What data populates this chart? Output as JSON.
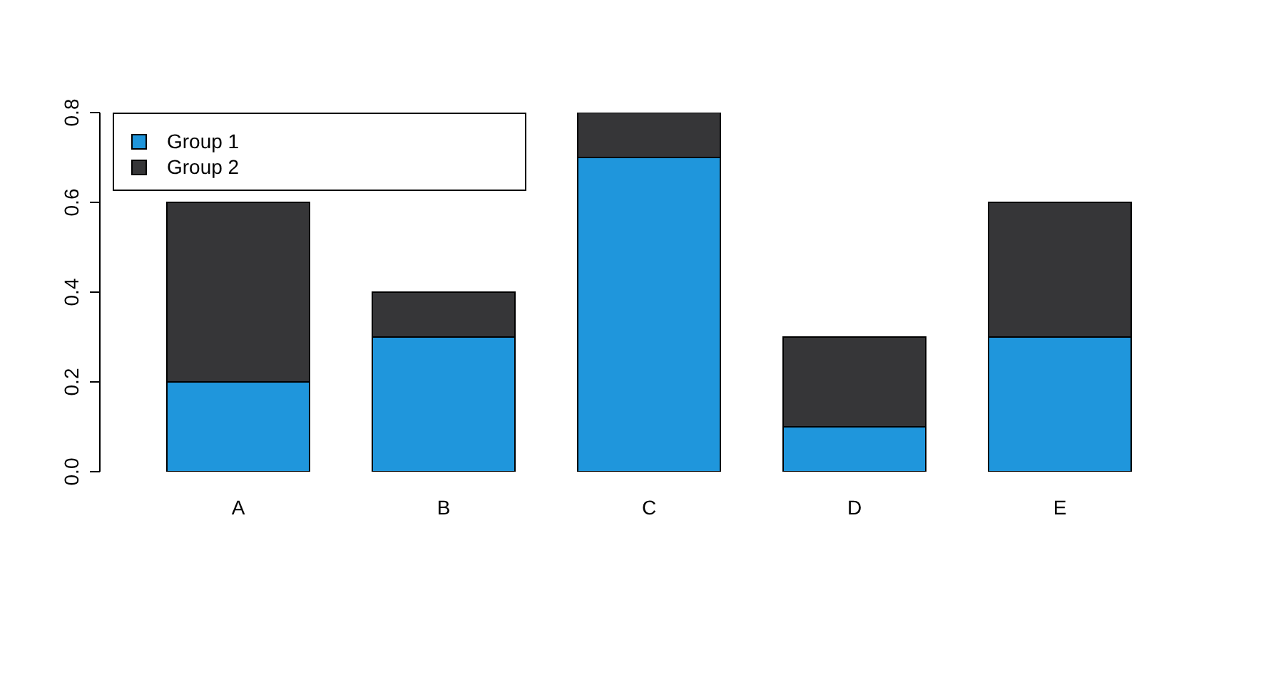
{
  "chart_data": {
    "type": "bar",
    "stacked": true,
    "categories": [
      "A",
      "B",
      "C",
      "D",
      "E"
    ],
    "series": [
      {
        "name": "Group 1",
        "color": "#1f96dc",
        "values": [
          0.2,
          0.3,
          0.7,
          0.1,
          0.3
        ]
      },
      {
        "name": "Group 2",
        "color": "#363638",
        "values": [
          0.4,
          0.1,
          0.1,
          0.2,
          0.3
        ]
      }
    ],
    "ylim": [
      0,
      0.8
    ],
    "yticks": [
      {
        "value": 0,
        "label": "0.0"
      },
      {
        "value": 0.2,
        "label": "0.2"
      },
      {
        "value": 0.4,
        "label": "0.4"
      },
      {
        "value": 0.6,
        "label": "0.6"
      },
      {
        "value": 0.8,
        "label": "0.8"
      }
    ],
    "grid": false,
    "legend": "top left"
  }
}
